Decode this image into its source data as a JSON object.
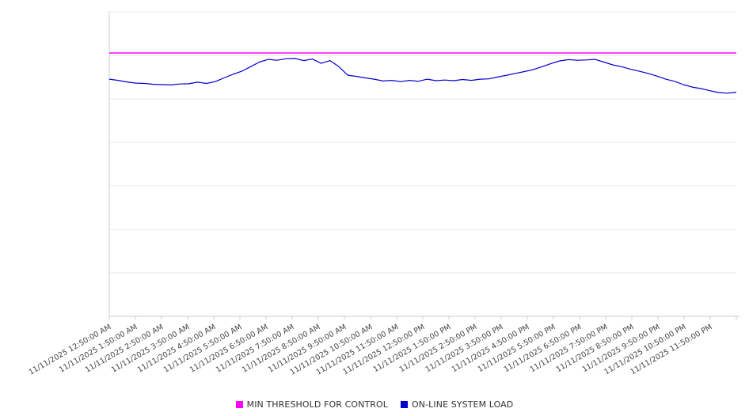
{
  "chart_data": {
    "type": "line",
    "title": "",
    "xlabel": "",
    "ylabel": "",
    "ylim": [
      0,
      100
    ],
    "y_tick_labels": [],
    "grid": true,
    "legend_position": "bottom",
    "sample_interval_minutes": 20,
    "x_labels": [
      "11/11/2025 12:50:00 AM",
      "11/11/2025 1:50:00 AM",
      "11/11/2025 2:50:00 AM",
      "11/11/2025 3:50:00 AM",
      "11/11/2025 4:50:00 AM",
      "11/11/2025 5:50:00 AM",
      "11/11/2025 6:50:00 AM",
      "11/11/2025 7:50:00 AM",
      "11/11/2025 8:50:00 AM",
      "11/11/2025 9:50:00 AM",
      "11/11/2025 10:50:00 AM",
      "11/11/2025 11:50:00 AM",
      "11/11/2025 12:50:00 PM",
      "11/11/2025 1:50:00 PM",
      "11/11/2025 2:50:00 PM",
      "11/11/2025 3:50:00 PM",
      "11/11/2025 4:50:00 PM",
      "11/11/2025 5:50:00 PM",
      "11/11/2025 6:50:00 PM",
      "11/11/2025 7:50:00 PM",
      "11/11/2025 8:50:00 PM",
      "11/11/2025 9:50:00 PM",
      "11/11/2025 10:50:00 PM",
      "11/11/2025 11:50:00 PM"
    ],
    "series": [
      {
        "name": "MIN THRESHOLD FOR CONTROL",
        "color": "#ff00ff",
        "style": "threshold",
        "value": 86.5
      },
      {
        "name": "ON-LINE SYSTEM LOAD",
        "color": "#0000cc",
        "style": "line",
        "values": [
          77.9,
          77.5,
          77.0,
          76.6,
          76.5,
          76.2,
          76.1,
          76.0,
          76.3,
          76.4,
          76.9,
          76.5,
          77.1,
          78.3,
          79.5,
          80.5,
          82.0,
          83.5,
          84.4,
          84.1,
          84.6,
          84.7,
          84.0,
          84.5,
          83.1,
          84.0,
          82.0,
          79.2,
          78.8,
          78.3,
          77.9,
          77.3,
          77.5,
          77.1,
          77.5,
          77.2,
          77.9,
          77.4,
          77.6,
          77.4,
          77.8,
          77.5,
          77.9,
          78.0,
          78.6,
          79.2,
          79.8,
          80.4,
          81.0,
          82.0,
          83.0,
          83.9,
          84.3,
          84.1,
          84.2,
          84.4,
          83.5,
          82.6,
          82.0,
          81.2,
          80.5,
          79.8,
          78.9,
          77.9,
          77.2,
          76.1,
          75.3,
          74.8,
          74.1,
          73.5,
          73.3,
          73.6
        ]
      }
    ],
    "colors": {
      "gridline": "#e9e9e9",
      "axis": "#cccccc",
      "tick_label": "#444444",
      "background": "#ffffff"
    }
  }
}
